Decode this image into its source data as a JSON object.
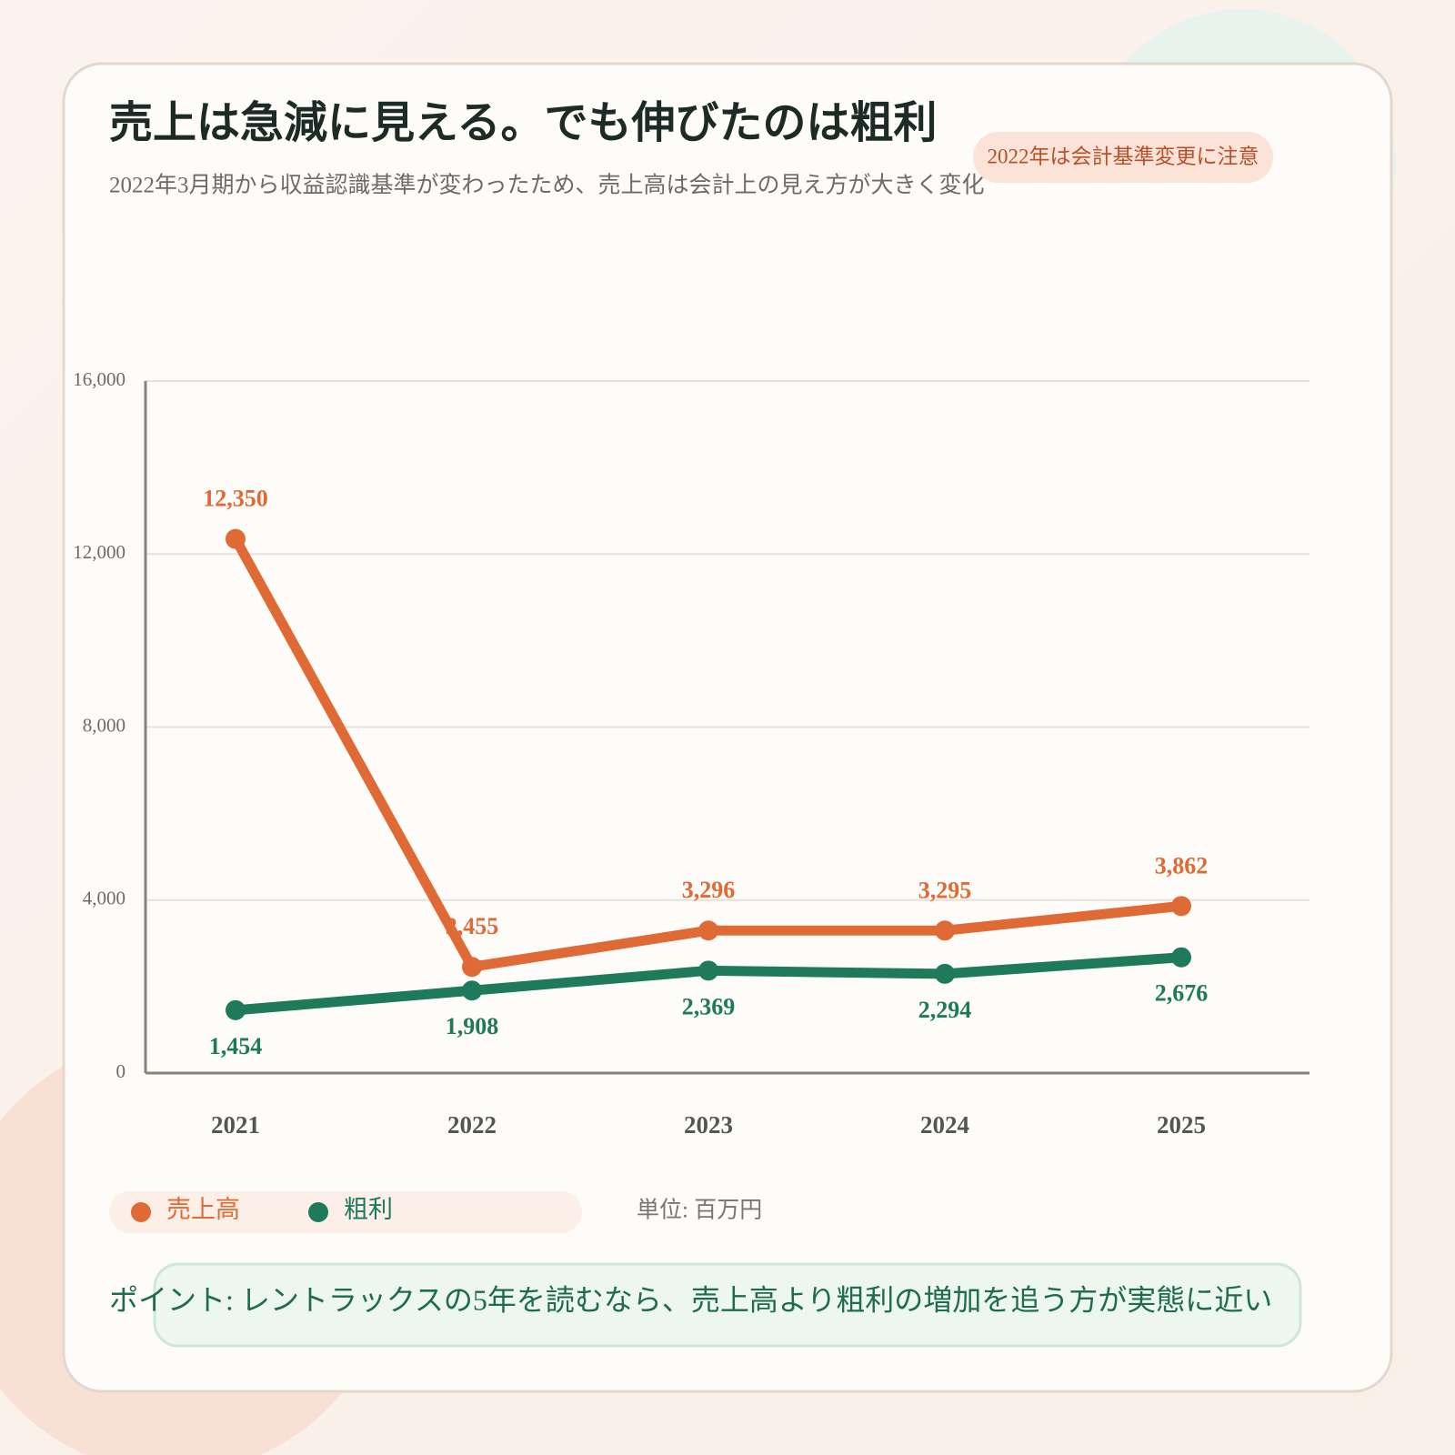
{
  "chart_data": {
    "type": "line",
    "title": "売上は急減に見える。でも伸びたのは粗利",
    "subtitle": "2022年3月期から収益認識基準が変わったため、売上高は会計上の見え方が大きく変化",
    "annotation": "2022年は会計基準変更に注意",
    "unit_note": "単位: 百万円",
    "note": "ポイント: レントラックスの5年を読むなら、売上高より粗利の増加を追う方が実態に近い",
    "categories": [
      "2021",
      "2022",
      "2023",
      "2024",
      "2025"
    ],
    "series": [
      {
        "name": "売上高",
        "color": "#e06a35",
        "values": [
          12350,
          2455,
          3296,
          3295,
          3862
        ],
        "value_labels": [
          "12,350",
          "2,455",
          "3,296",
          "3,295",
          "3,862"
        ]
      },
      {
        "name": "粗利",
        "color": "#1e7a5a",
        "values": [
          1454,
          1908,
          2369,
          2294,
          2676
        ],
        "value_labels": [
          "1,454",
          "1,908",
          "2,369",
          "2,294",
          "2,676"
        ]
      }
    ],
    "ylim": [
      0,
      16000
    ],
    "yticks": [
      0,
      {
        "value": 4000,
        "label": "4,000"
      },
      {
        "value": 8000,
        "label": "8,000"
      },
      {
        "value": 12000,
        "label": "12,000"
      },
      {
        "value": 16000,
        "label": "16,000"
      }
    ],
    "grid": true
  }
}
